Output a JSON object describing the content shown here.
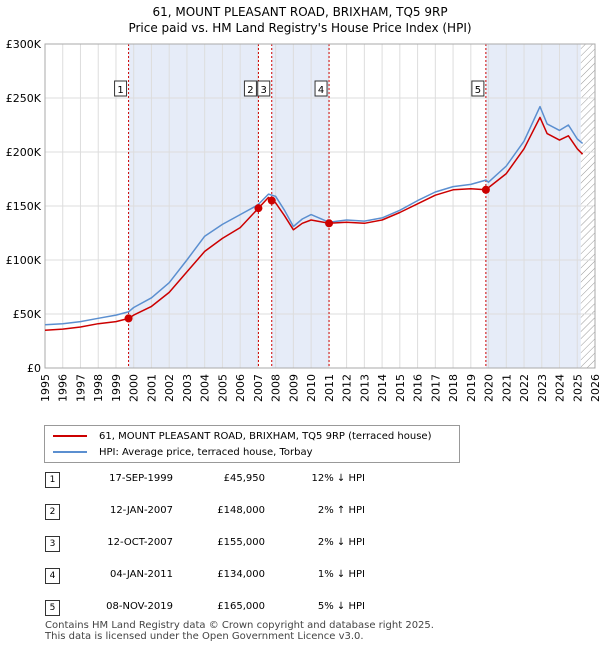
{
  "title_line1": "61, MOUNT PLEASANT ROAD, BRIXHAM, TQ5 9RP",
  "title_line2": "Price paid vs. HM Land Registry's House Price Index (HPI)",
  "colors": {
    "property": "#cc0000",
    "hpi": "#5b8fd0",
    "shade": "#e6ecf8",
    "grid": "#dddddd",
    "marker": "#cc0000"
  },
  "legend": {
    "property_label": "61, MOUNT PLEASANT ROAD, BRIXHAM, TQ5 9RP (terraced house)",
    "hpi_label": "HPI: Average price, terraced house, Torbay"
  },
  "sales": [
    {
      "num": "1",
      "date": "17-SEP-1999",
      "price": "£45,950",
      "hpi_diff": "12% ↓ HPI"
    },
    {
      "num": "2",
      "date": "12-JAN-2007",
      "price": "£148,000",
      "hpi_diff": "2% ↑ HPI"
    },
    {
      "num": "3",
      "date": "12-OCT-2007",
      "price": "£155,000",
      "hpi_diff": "2% ↓ HPI"
    },
    {
      "num": "4",
      "date": "04-JAN-2011",
      "price": "£134,000",
      "hpi_diff": "1% ↓ HPI"
    },
    {
      "num": "5",
      "date": "08-NOV-2019",
      "price": "£165,000",
      "hpi_diff": "5% ↓ HPI"
    }
  ],
  "footer_line1": "Contains HM Land Registry data © Crown copyright and database right 2025.",
  "footer_line2": "This data is licensed under the Open Government Licence v3.0.",
  "chart_data": {
    "type": "line",
    "title": "61, MOUNT PLEASANT ROAD, BRIXHAM, TQ5 9RP — Price paid vs. HM Land Registry's House Price Index (HPI)",
    "xlabel": "",
    "ylabel": "",
    "xlim": [
      1995,
      2026
    ],
    "ylim": [
      0,
      300000
    ],
    "x_ticks": [
      "1995",
      "1996",
      "1997",
      "1998",
      "1999",
      "2000",
      "2001",
      "2002",
      "2003",
      "2004",
      "2005",
      "2006",
      "2007",
      "2008",
      "2009",
      "2010",
      "2011",
      "2012",
      "2013",
      "2014",
      "2015",
      "2016",
      "2017",
      "2018",
      "2019",
      "2020",
      "2021",
      "2022",
      "2023",
      "2024",
      "2025",
      "2026"
    ],
    "y_ticks": [
      {
        "value": 0,
        "label": "£0"
      },
      {
        "value": 50000,
        "label": "£50K"
      },
      {
        "value": 100000,
        "label": "£100K"
      },
      {
        "value": 150000,
        "label": "£150K"
      },
      {
        "value": 200000,
        "label": "£200K"
      },
      {
        "value": 250000,
        "label": "£250K"
      },
      {
        "value": 300000,
        "label": "£300K"
      }
    ],
    "shaded_spans": [
      [
        1999.71,
        2007.03
      ],
      [
        2007.78,
        2011.01
      ],
      [
        2019.85,
        2025.2
      ]
    ],
    "hatch_from": 2025.2,
    "series": [
      {
        "name": "HPI: Average price, terraced house, Torbay",
        "x": [
          1995,
          1996,
          1997,
          1998,
          1999,
          1999.71,
          2000,
          2001,
          2002,
          2003,
          2004,
          2005,
          2006,
          2007,
          2007.6,
          2008,
          2008.5,
          2009,
          2009.5,
          2010,
          2011,
          2012,
          2013,
          2014,
          2015,
          2016,
          2017,
          2018,
          2019,
          2019.85,
          2020,
          2021,
          2022,
          2022.9,
          2023.3,
          2024,
          2024.5,
          2025,
          2025.3
        ],
        "y": [
          40000,
          41000,
          43000,
          46000,
          49000,
          52000,
          56000,
          65000,
          79000,
          100000,
          122000,
          133000,
          142000,
          151000,
          161000,
          159000,
          146000,
          131000,
          138000,
          142000,
          135000,
          137000,
          136000,
          139000,
          146000,
          155000,
          163000,
          168000,
          170000,
          174000,
          172000,
          187000,
          210000,
          242000,
          226000,
          220000,
          225000,
          212000,
          208000
        ]
      },
      {
        "name": "61, MOUNT PLEASANT ROAD, BRIXHAM, TQ5 9RP (terraced house)",
        "x": [
          1995,
          1996,
          1997,
          1998,
          1999,
          1999.71,
          2000,
          2001,
          2002,
          2003,
          2004,
          2005,
          2006,
          2007.03,
          2007.6,
          2007.78,
          2008,
          2008.5,
          2009,
          2009.5,
          2010,
          2011.01,
          2012,
          2013,
          2014,
          2015,
          2016,
          2017,
          2018,
          2019,
          2019.85,
          2020,
          2021,
          2022,
          2022.9,
          2023.3,
          2024,
          2024.5,
          2025,
          2025.3
        ],
        "y": [
          35000,
          36000,
          38000,
          41000,
          43000,
          45950,
          49000,
          57000,
          70000,
          89000,
          108000,
          120000,
          130000,
          148000,
          158000,
          155000,
          153000,
          141000,
          128000,
          134000,
          137000,
          134000,
          135000,
          134000,
          137000,
          144000,
          152000,
          160000,
          165000,
          166000,
          165000,
          167000,
          180000,
          203000,
          232000,
          217000,
          211000,
          215000,
          203000,
          198000
        ]
      }
    ],
    "sale_points": [
      {
        "label": "1",
        "x": 1999.71,
        "y": 45950
      },
      {
        "label": "2",
        "x": 2007.03,
        "y": 148000
      },
      {
        "label": "3",
        "x": 2007.78,
        "y": 155000
      },
      {
        "label": "4",
        "x": 2011.01,
        "y": 134000
      },
      {
        "label": "5",
        "x": 2019.85,
        "y": 165000
      }
    ]
  }
}
